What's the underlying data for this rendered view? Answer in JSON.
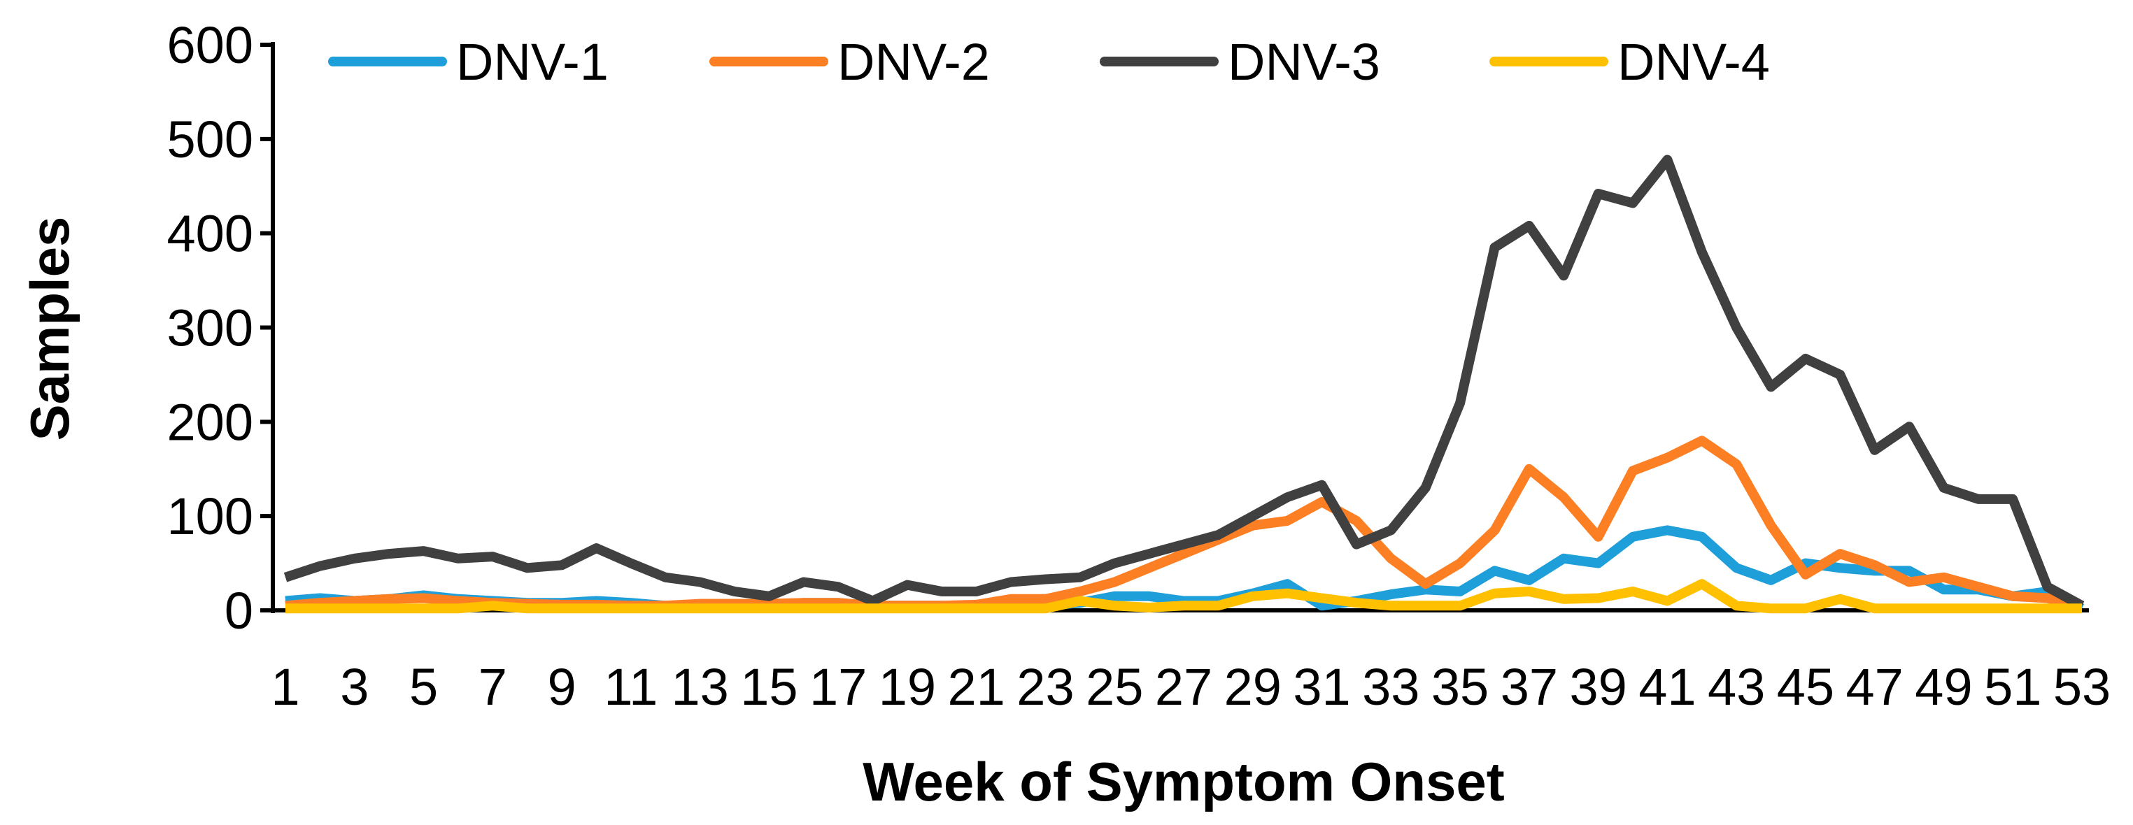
{
  "chart_data": {
    "type": "line",
    "title": "",
    "xlabel": "Week of Symptom Onset",
    "ylabel": "Samples",
    "ylim": [
      0,
      600
    ],
    "yticks": [
      0,
      100,
      200,
      300,
      400,
      500,
      600
    ],
    "xlim": [
      1,
      53
    ],
    "xtick_labels": [
      "1",
      "3",
      "5",
      "7",
      "9",
      "11",
      "13",
      "15",
      "17",
      "19",
      "21",
      "23",
      "25",
      "27",
      "29",
      "31",
      "33",
      "35",
      "37",
      "39",
      "41",
      "43",
      "45",
      "47",
      "49",
      "51",
      "53"
    ],
    "legend_position": "top",
    "grid": false,
    "series": [
      {
        "name": "DNV-1",
        "color": "#1f9fd9",
        "values": [
          10,
          13,
          10,
          12,
          16,
          12,
          10,
          8,
          8,
          10,
          8,
          5,
          5,
          5,
          5,
          8,
          8,
          5,
          5,
          5,
          5,
          5,
          5,
          8,
          15,
          15,
          10,
          10,
          18,
          28,
          5,
          10,
          17,
          22,
          20,
          42,
          32,
          55,
          50,
          78,
          85,
          78,
          45,
          32,
          50,
          45,
          42,
          42,
          22,
          22,
          15,
          20,
          2
        ]
      },
      {
        "name": "DNV-2",
        "color": "#fd7f23",
        "values": [
          5,
          8,
          10,
          12,
          13,
          10,
          8,
          7,
          6,
          6,
          5,
          5,
          7,
          7,
          7,
          8,
          8,
          5,
          5,
          5,
          6,
          12,
          12,
          20,
          30,
          45,
          60,
          75,
          90,
          95,
          115,
          95,
          55,
          28,
          50,
          85,
          150,
          120,
          78,
          148,
          162,
          180,
          155,
          90,
          38,
          60,
          48,
          30,
          35,
          25,
          15,
          13,
          5
        ]
      },
      {
        "name": "DNV-3",
        "color": "#404040",
        "values": [
          35,
          47,
          55,
          60,
          63,
          55,
          57,
          45,
          48,
          66,
          50,
          35,
          30,
          20,
          15,
          30,
          25,
          10,
          27,
          20,
          20,
          30,
          33,
          35,
          50,
          60,
          70,
          80,
          100,
          120,
          133,
          70,
          85,
          130,
          220,
          385,
          408,
          355,
          442,
          432,
          478,
          380,
          300,
          237,
          267,
          250,
          170,
          195,
          130,
          118,
          118,
          25,
          5
        ]
      },
      {
        "name": "DNV-4",
        "color": "#ffc000",
        "values": [
          2,
          2,
          2,
          2,
          2,
          2,
          5,
          2,
          2,
          2,
          2,
          2,
          2,
          2,
          2,
          2,
          2,
          2,
          2,
          2,
          2,
          2,
          2,
          10,
          5,
          3,
          5,
          5,
          15,
          18,
          13,
          8,
          5,
          5,
          5,
          18,
          20,
          12,
          13,
          20,
          10,
          28,
          5,
          2,
          2,
          12,
          2,
          2,
          2,
          2,
          2,
          2,
          2
        ]
      }
    ]
  }
}
